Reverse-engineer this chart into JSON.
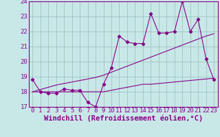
{
  "xlabel": "Windchill (Refroidissement éolien,°C)",
  "background_color": "#c8e8e8",
  "line_color": "#880088",
  "grid_color": "#99bbbb",
  "x_data": [
    0,
    1,
    2,
    3,
    4,
    5,
    6,
    7,
    8,
    9,
    10,
    11,
    12,
    13,
    14,
    15,
    16,
    17,
    18,
    19,
    20,
    21,
    22,
    23
  ],
  "y_main": [
    18.8,
    18.0,
    17.9,
    17.9,
    18.2,
    18.1,
    18.1,
    17.3,
    17.0,
    18.5,
    19.6,
    21.7,
    21.3,
    21.2,
    21.2,
    23.2,
    21.9,
    21.9,
    22.0,
    24.0,
    22.0,
    22.8,
    20.2,
    18.8
  ],
  "y_flat": [
    18.0,
    18.0,
    18.0,
    18.0,
    18.0,
    18.0,
    18.0,
    18.0,
    18.0,
    18.0,
    18.1,
    18.2,
    18.3,
    18.4,
    18.5,
    18.5,
    18.55,
    18.6,
    18.65,
    18.7,
    18.75,
    18.8,
    18.85,
    18.9
  ],
  "y_trend": [
    18.0,
    18.15,
    18.3,
    18.45,
    18.55,
    18.65,
    18.75,
    18.85,
    18.95,
    19.1,
    19.3,
    19.5,
    19.7,
    19.9,
    20.1,
    20.3,
    20.5,
    20.7,
    20.9,
    21.1,
    21.3,
    21.5,
    21.7,
    21.85
  ],
  "ylim": [
    17,
    24
  ],
  "yticks": [
    17,
    18,
    19,
    20,
    21,
    22,
    23,
    24
  ],
  "xticks": [
    0,
    1,
    2,
    3,
    4,
    5,
    6,
    7,
    8,
    9,
    10,
    11,
    12,
    13,
    14,
    15,
    16,
    17,
    18,
    19,
    20,
    21,
    22,
    23
  ],
  "tick_fontsize": 6.5,
  "xlabel_fontsize": 7.5
}
